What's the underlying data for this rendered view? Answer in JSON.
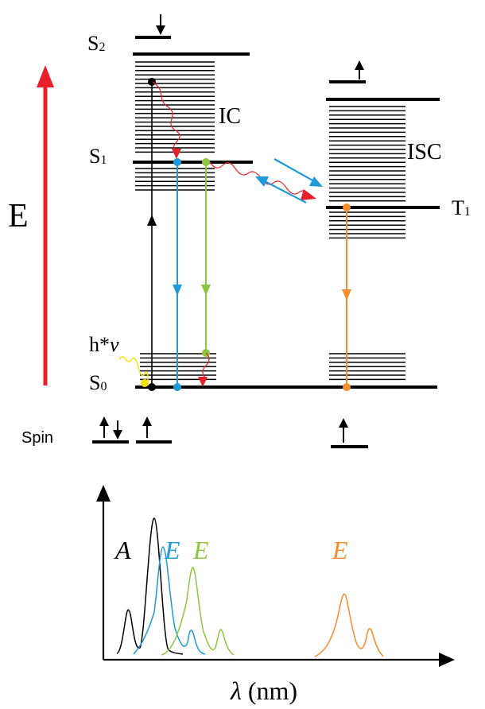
{
  "labels": {
    "energy": "E",
    "s2": "S",
    "s2_sub": "2",
    "s1": "S",
    "s1_sub": "1",
    "s0": "S",
    "s0_sub": "0",
    "t1": "T",
    "t1_sub": "1",
    "ic": "IC",
    "isc": "ISC",
    "photon": "h*",
    "photon_nu": "v",
    "spin": "Spin",
    "spectrum_a": "A",
    "spectrum_e_blue": "E",
    "spectrum_e_green": "E",
    "spectrum_e_orange": "E",
    "x_axis_symbol": "λ",
    "x_axis_unit": " (nm)"
  },
  "colors": {
    "energy_arrow": "#e8202a",
    "blue": "#1f9ad8",
    "green": "#8dc63f",
    "orange": "#f58d2a",
    "red": "#e8202a",
    "yellow": "#f5e100",
    "black": "#000000"
  }
}
